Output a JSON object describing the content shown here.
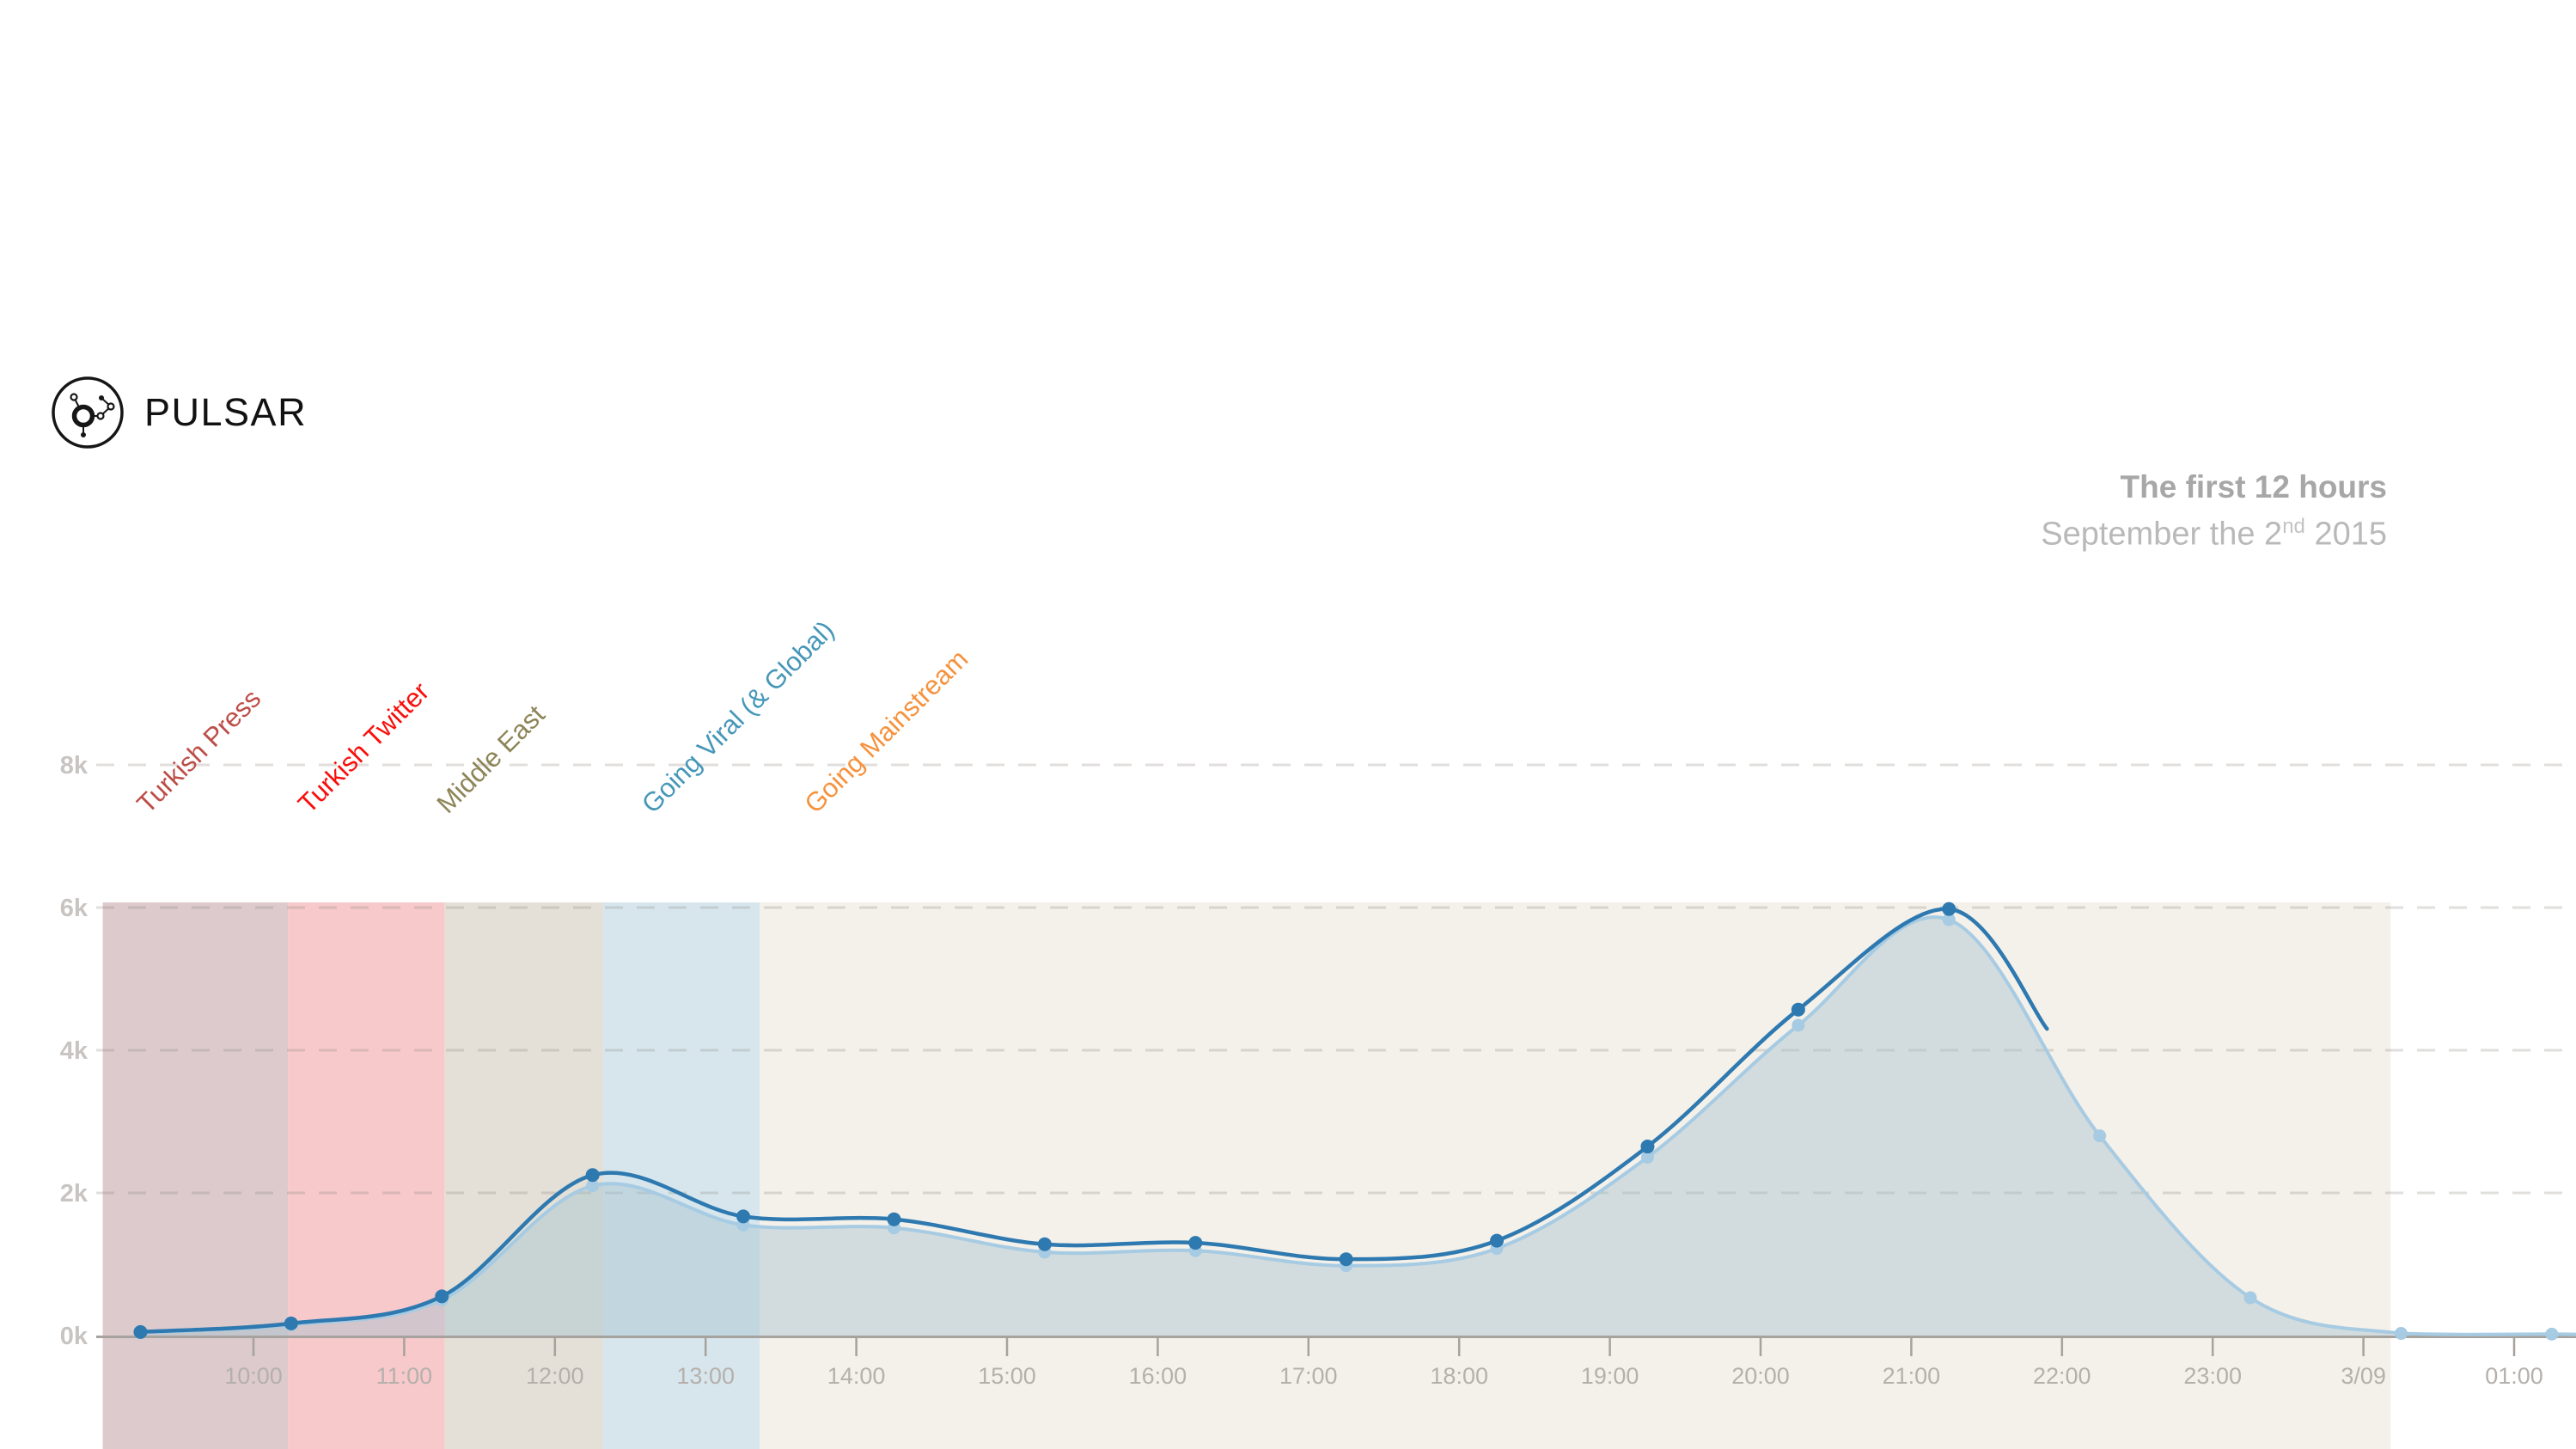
{
  "logo": {
    "text": "PULSAR"
  },
  "title": {
    "line1": "The first 12 hours",
    "line2_prefix": "September the 2",
    "line2_sup": "nd",
    "line2_suffix": " 2015"
  },
  "colors": {
    "dark_series": "#2d79b0",
    "light_series": "#a6cbe3",
    "area_fill": "rgba(161,193,206,0.42)",
    "gridline": "#8c8782",
    "axis": "#a6a29e",
    "x_tick_label": "#b5b0ac",
    "y_tick_label": "#c8c4c1",
    "title": "#a7a7a7",
    "subtitle": "#b9b9b9"
  },
  "chart_data": {
    "type": "area",
    "title": "The first 12 hours",
    "subtitle": "September the 2nd 2015",
    "ylim": [
      0,
      8000
    ],
    "grid": "horizontal-dashed",
    "legend": "none",
    "y_ticks": [
      {
        "label": "0k",
        "value": 0
      },
      {
        "label": "2k",
        "value": 2000
      },
      {
        "label": "4k",
        "value": 4000
      },
      {
        "label": "6k",
        "value": 6000
      },
      {
        "label": "8k",
        "value": 8000
      }
    ],
    "x_ticks": [
      {
        "label": "10:00",
        "hour": 10
      },
      {
        "label": "11:00",
        "hour": 11
      },
      {
        "label": "12:00",
        "hour": 12
      },
      {
        "label": "13:00",
        "hour": 13
      },
      {
        "label": "14:00",
        "hour": 14
      },
      {
        "label": "15:00",
        "hour": 15
      },
      {
        "label": "16:00",
        "hour": 16
      },
      {
        "label": "17:00",
        "hour": 17
      },
      {
        "label": "18:00",
        "hour": 18
      },
      {
        "label": "19:00",
        "hour": 19
      },
      {
        "label": "20:00",
        "hour": 20
      },
      {
        "label": "21:00",
        "hour": 21
      },
      {
        "label": "22:00",
        "hour": 22
      },
      {
        "label": "23:00",
        "hour": 23
      },
      {
        "label": "3/09",
        "hour": 24
      },
      {
        "label": "01:00",
        "hour": 25
      }
    ],
    "phase_bands": [
      {
        "name": "turkish-press",
        "label": "Turkish Press",
        "label_color": "#bd4d47",
        "band_color": "#dccacd",
        "start_hour": 9.0,
        "end_hour": 10.23,
        "label_anchor_hour": 9.3
      },
      {
        "name": "turkish-twitter",
        "label": "Turkish Twitter",
        "label_color": "#f80f0c",
        "band_color": "#f7c9cb",
        "start_hour": 10.23,
        "end_hour": 11.27,
        "label_anchor_hour": 10.37
      },
      {
        "name": "middle-east",
        "label": "Middle East",
        "label_color": "#8d8557",
        "band_color": "#e4e0d7",
        "start_hour": 11.27,
        "end_hour": 12.32,
        "label_anchor_hour": 11.29
      },
      {
        "name": "going-viral",
        "label": "Going Viral (& Global)",
        "label_color": "#4697b8",
        "band_color": "#d7e6ed",
        "start_hour": 12.32,
        "end_hour": 13.36,
        "label_anchor_hour": 12.65
      },
      {
        "name": "going-mainstream",
        "label": "Going Mainstream",
        "label_color": "#f6923d",
        "band_color": "#f4f0ea",
        "start_hour": 13.36,
        "end_hour": 24.18,
        "label_anchor_hour": 13.73
      }
    ],
    "series": [
      {
        "name": "light-blue-series",
        "color": "#a6cbe3",
        "fill": "rgba(161,193,206,0.42)",
        "marker_radius": 7.5,
        "times": [
          "09:15",
          "10:15",
          "11:15",
          "12:15",
          "13:15",
          "14:15",
          "15:15",
          "16:15",
          "17:15",
          "18:15",
          "19:15",
          "20:15",
          "21:15",
          "22:15",
          "23:15",
          "00:15",
          "01:15"
        ],
        "x_hours": [
          9.25,
          10.25,
          11.25,
          12.25,
          13.25,
          14.25,
          15.25,
          16.25,
          17.25,
          18.25,
          19.25,
          20.25,
          21.25,
          22.25,
          23.25,
          24.25,
          25.25
        ],
        "values": [
          40,
          150,
          500,
          2100,
          1550,
          1510,
          1170,
          1190,
          980,
          1220,
          2500,
          4350,
          5830,
          2800,
          530,
          30,
          20
        ],
        "line_tail": {
          "x_hour": 25.42,
          "value": 15
        }
      },
      {
        "name": "dark-blue-series",
        "color": "#2d79b0",
        "fill": "none",
        "marker_radius": 8,
        "times": [
          "09:15",
          "10:15",
          "11:15",
          "12:15",
          "13:15",
          "14:15",
          "15:15",
          "16:15",
          "17:15",
          "18:15",
          "19:15",
          "20:15",
          "21:15"
        ],
        "x_hours": [
          9.25,
          10.25,
          11.25,
          12.25,
          13.25,
          14.25,
          15.25,
          16.25,
          17.25,
          18.25,
          19.25,
          20.25,
          21.25
        ],
        "values": [
          50,
          170,
          550,
          2250,
          1670,
          1630,
          1280,
          1300,
          1070,
          1330,
          2650,
          4570,
          5980
        ],
        "line_tail": {
          "x_hour": 21.9,
          "value": 4300
        }
      }
    ]
  }
}
